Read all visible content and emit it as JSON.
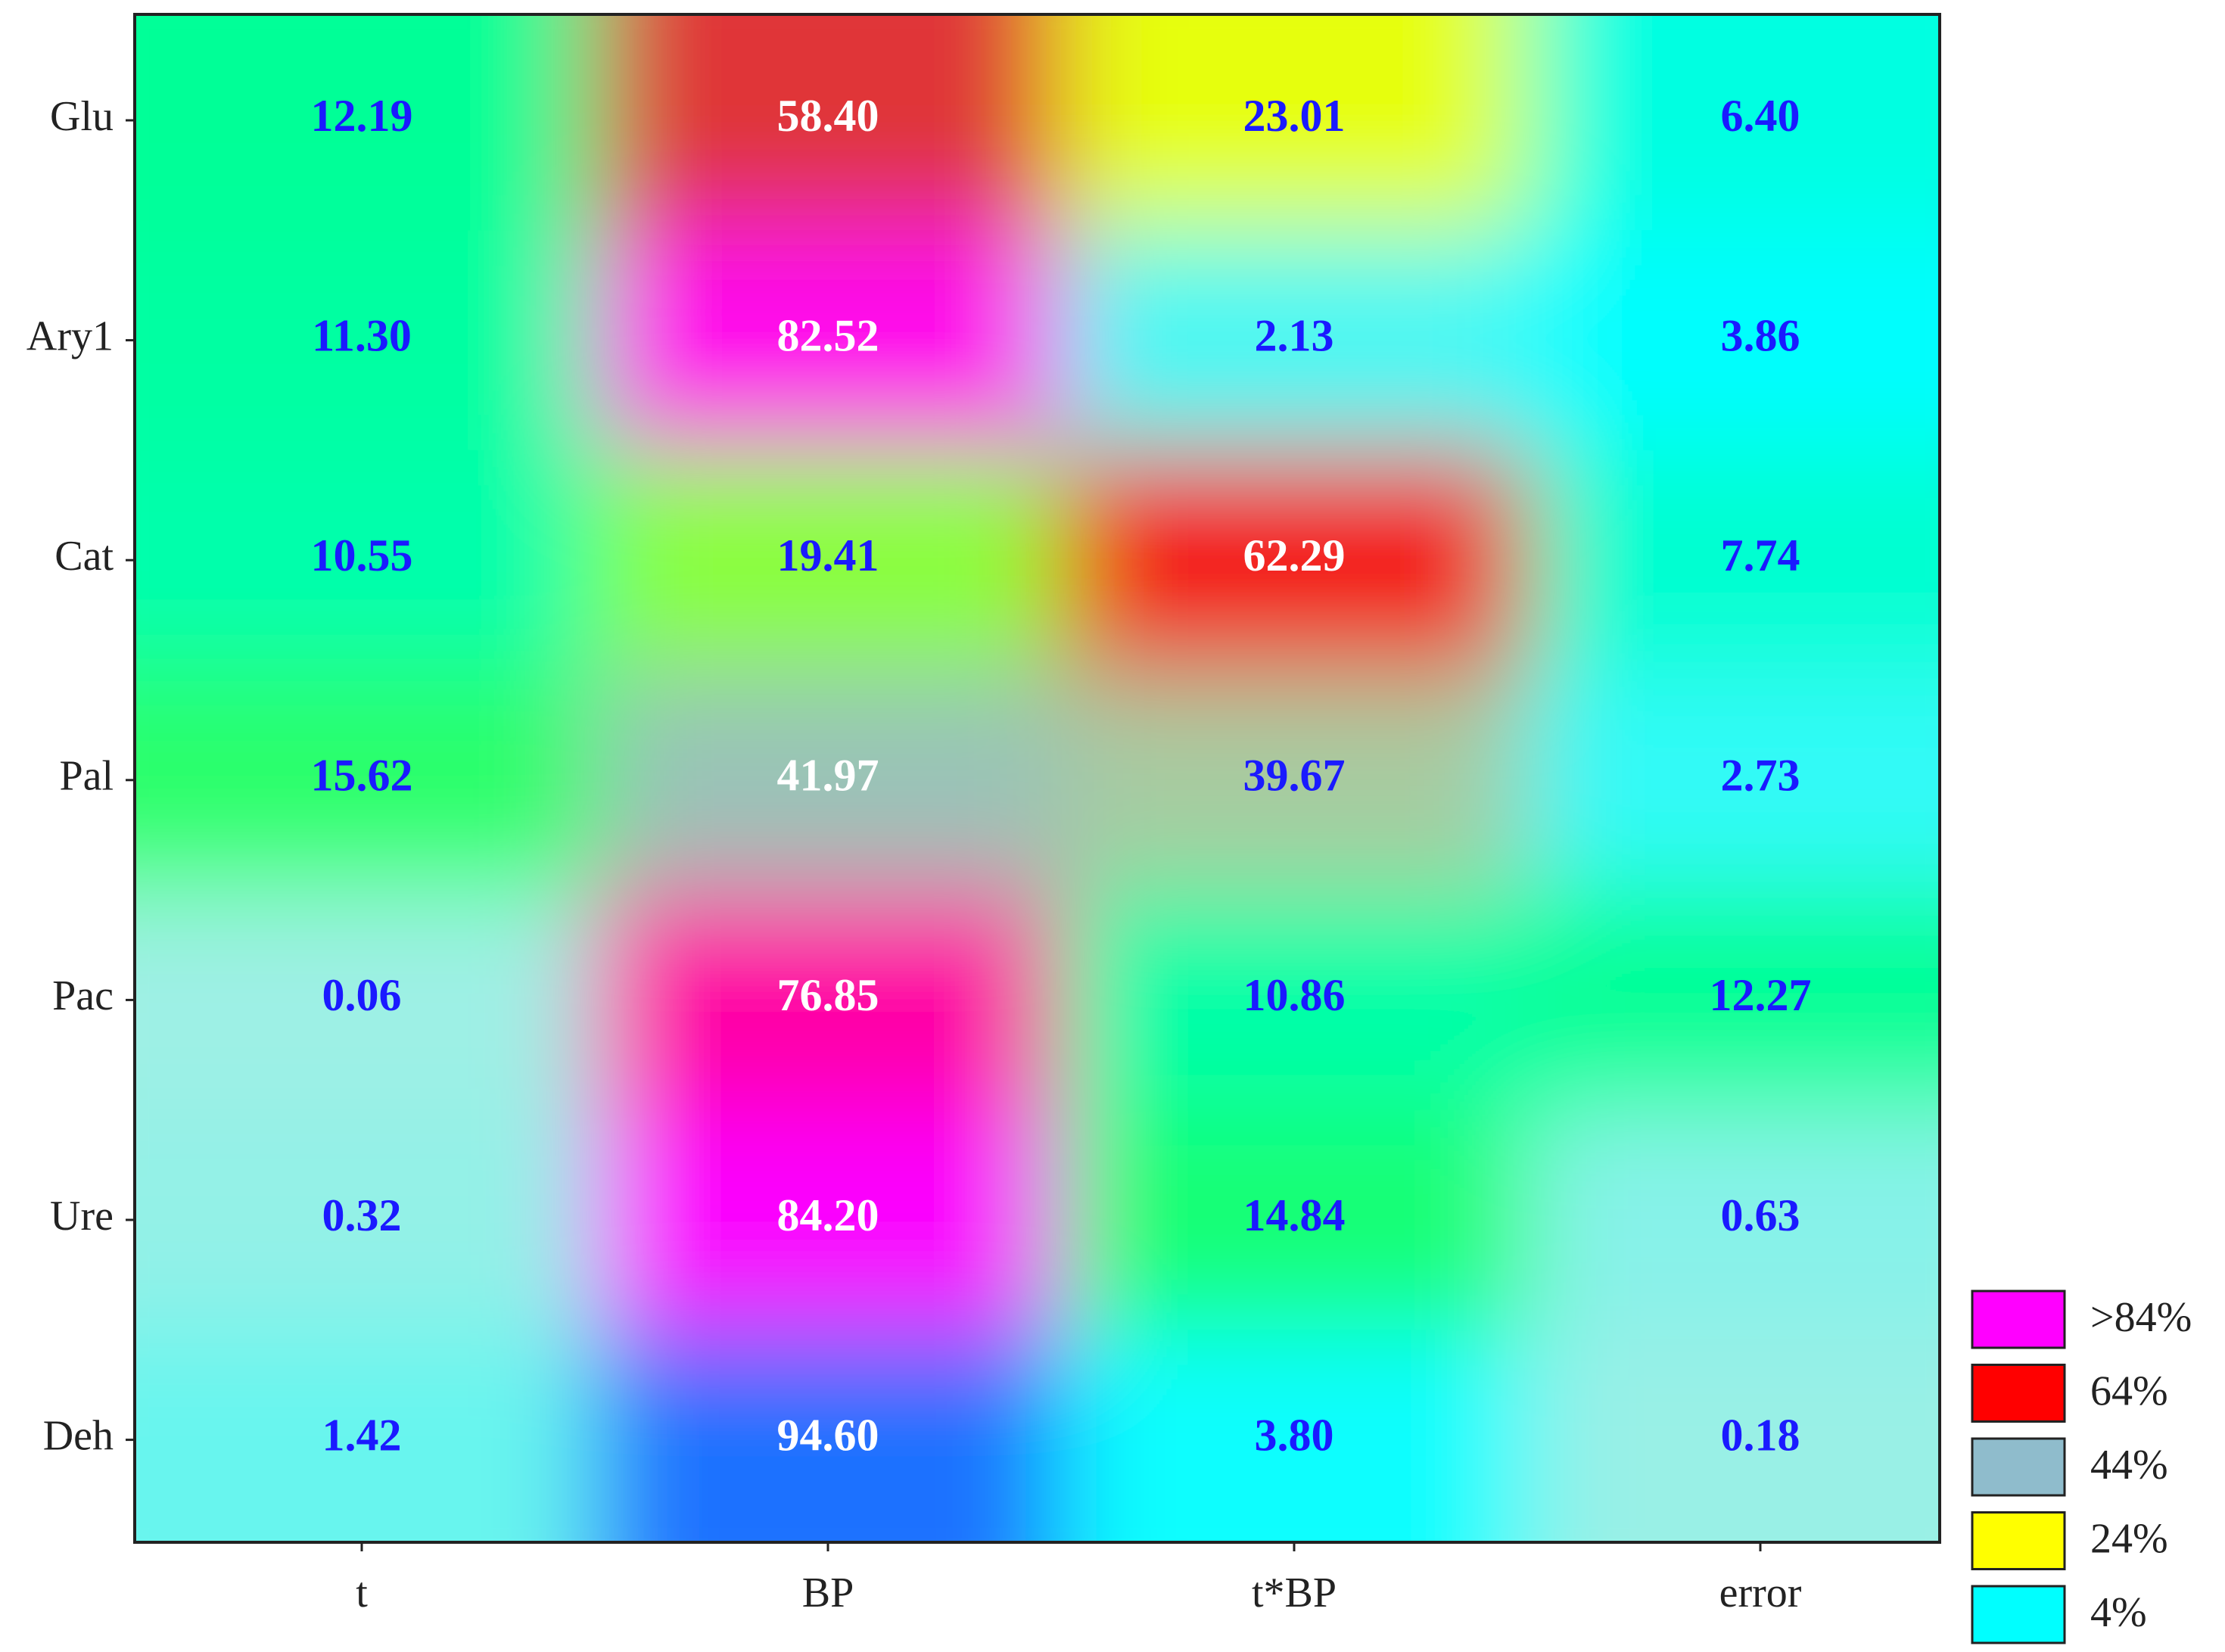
{
  "chart_data": {
    "type": "heatmap",
    "x_categories": [
      "t",
      "BP",
      "t*BP",
      "error"
    ],
    "y_categories": [
      "Glu",
      "Ary1",
      "Cat",
      "Pal",
      "Pac",
      "Ure",
      "Deh"
    ],
    "values": [
      [
        12.19,
        58.4,
        23.01,
        6.4
      ],
      [
        11.3,
        82.52,
        2.13,
        3.86
      ],
      [
        10.55,
        19.41,
        62.29,
        7.74
      ],
      [
        15.62,
        41.97,
        39.67,
        2.73
      ],
      [
        0.06,
        76.85,
        10.86,
        12.27
      ],
      [
        0.32,
        84.2,
        14.84,
        0.63
      ],
      [
        1.42,
        94.6,
        3.8,
        0.18
      ]
    ],
    "value_labels": [
      [
        "12.19",
        "58.40",
        "23.01",
        "6.40"
      ],
      [
        "11.30",
        "82.52",
        "2.13",
        "3.86"
      ],
      [
        "10.55",
        "19.41",
        "62.29",
        "7.74"
      ],
      [
        "15.62",
        "41.97",
        "39.67",
        "2.73"
      ],
      [
        "0.06",
        "76.85",
        "10.86",
        "12.27"
      ],
      [
        "0.32",
        "84.20",
        "14.84",
        "0.63"
      ],
      [
        "1.42",
        "94.60",
        "3.80",
        "0.18"
      ]
    ],
    "legend": [
      {
        "value": 84,
        "label": ">84%",
        "color": "#ff00ff"
      },
      {
        "value": 64,
        "label": "64%",
        "color": "#ff0000"
      },
      {
        "value": 44,
        "label": "44%",
        "color": "#8fbccc"
      },
      {
        "value": 24,
        "label": "24%",
        "color": "#ffff00"
      },
      {
        "value": 4,
        "label": "4%",
        "color": "#00ffff"
      }
    ]
  }
}
